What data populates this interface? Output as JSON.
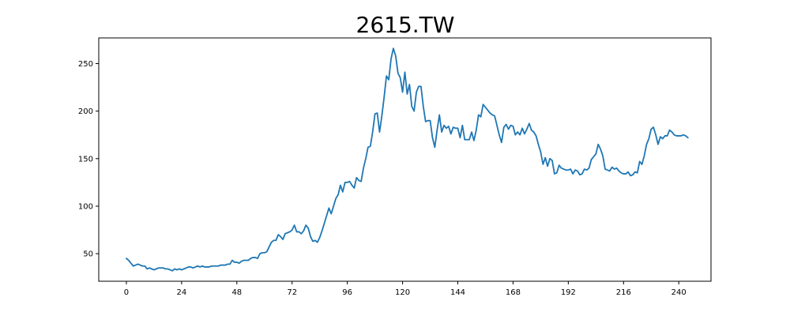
{
  "chart_data": {
    "type": "line",
    "title": "2615.TW",
    "xlabel": "",
    "ylabel": "",
    "xlim": [
      -12,
      254
    ],
    "ylim": [
      21,
      277
    ],
    "xticks": [
      0,
      24,
      48,
      72,
      96,
      120,
      144,
      168,
      192,
      216,
      240
    ],
    "xtick_labels": [
      "0",
      "24",
      "48",
      "72",
      "96",
      "120",
      "144",
      "168",
      "192",
      "216",
      "240"
    ],
    "yticks": [
      50,
      100,
      150,
      200,
      250
    ],
    "ytick_labels": [
      "50",
      "100",
      "150",
      "200",
      "250"
    ],
    "grid": false,
    "legend": "none",
    "color": "#1f77b4",
    "series": [
      {
        "values": [
          45,
          43,
          40,
          37,
          38,
          39,
          38,
          37,
          37,
          34,
          35,
          34,
          33,
          34,
          35,
          35,
          35,
          34,
          34,
          33,
          32,
          34,
          33,
          34,
          33,
          34,
          35,
          36,
          36,
          35,
          36,
          37,
          36,
          37,
          36,
          36,
          36,
          37,
          37,
          37,
          37,
          38,
          38,
          38,
          39,
          39,
          43,
          41,
          41,
          40,
          42,
          43,
          43,
          43,
          45,
          46,
          46,
          45,
          50,
          51,
          51,
          52,
          57,
          62,
          64,
          64,
          70,
          68,
          65,
          71,
          72,
          73,
          75,
          80,
          73,
          73,
          71,
          74,
          80,
          77,
          68,
          63,
          64,
          62,
          67,
          74,
          82,
          90,
          98,
          92,
          100,
          108,
          112,
          122,
          115,
          125,
          125,
          126,
          122,
          119,
          130,
          127,
          126,
          140,
          150,
          162,
          163,
          178,
          197,
          198,
          178,
          195,
          215,
          237,
          233,
          255,
          266,
          258,
          240,
          235,
          220,
          241,
          218,
          228,
          205,
          200,
          220,
          226,
          226,
          205,
          189,
          190,
          190,
          172,
          162,
          180,
          196,
          178,
          185,
          182,
          184,
          176,
          183,
          182,
          182,
          172,
          185,
          170,
          170,
          170,
          178,
          169,
          180,
          196,
          194,
          207,
          204,
          201,
          198,
          196,
          195,
          185,
          175,
          167,
          183,
          186,
          181,
          185,
          184,
          175,
          178,
          175,
          182,
          176,
          181,
          187,
          180,
          178,
          174,
          165,
          157,
          144,
          151,
          142,
          150,
          148,
          134,
          135,
          143,
          140,
          139,
          138,
          138,
          139,
          134,
          138,
          137,
          133,
          134,
          139,
          138,
          140,
          149,
          152,
          155,
          165,
          160,
          153,
          139,
          138,
          137,
          141,
          139,
          140,
          137,
          135,
          134,
          134,
          136,
          132,
          133,
          136,
          135,
          147,
          144,
          153,
          165,
          171,
          181,
          183,
          175,
          165,
          173,
          171,
          174,
          174,
          180,
          178,
          175,
          174,
          174,
          174,
          175,
          174,
          172
        ]
      }
    ]
  }
}
